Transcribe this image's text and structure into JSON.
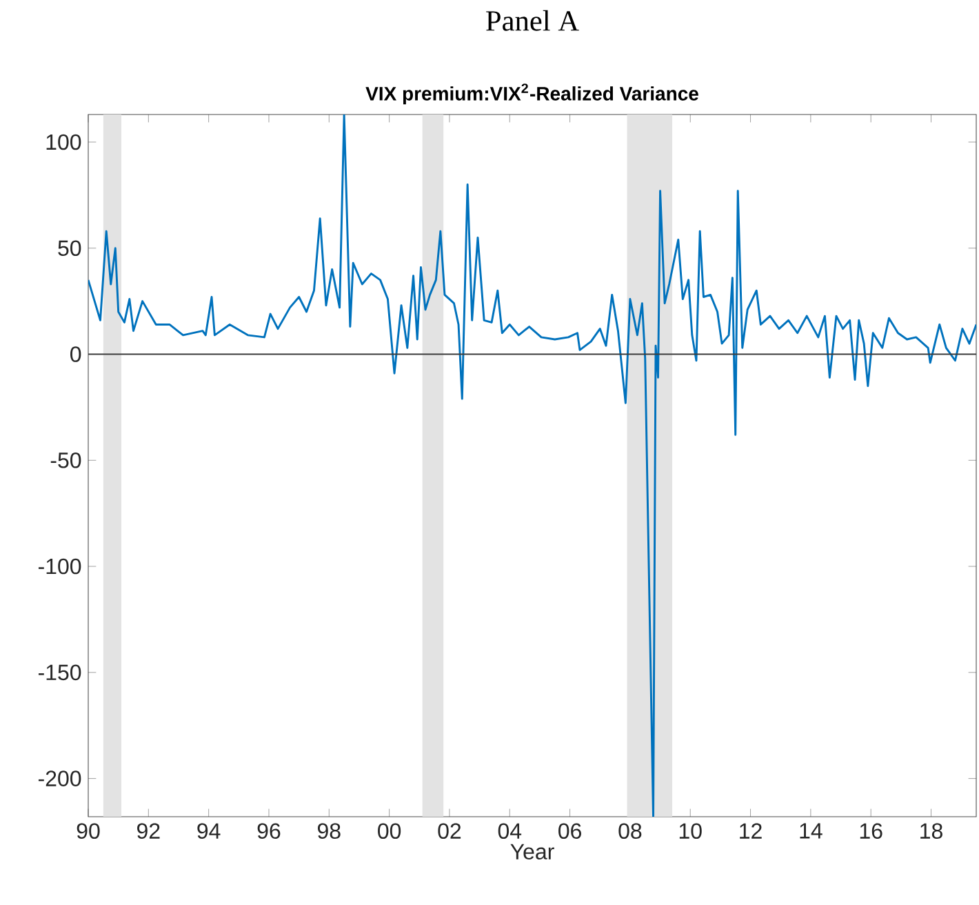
{
  "chart_data": {
    "type": "line",
    "title": "Panel A",
    "subtitle": "VIX premium:VIX$^{2}$-Realized Variance",
    "xlabel": "Year",
    "xlim": [
      1990,
      2019.5
    ],
    "ylim": [
      -218,
      113
    ],
    "xticks": [
      {
        "value": 1990,
        "label": "90"
      },
      {
        "value": 1992,
        "label": "92"
      },
      {
        "value": 1994,
        "label": "94"
      },
      {
        "value": 1996,
        "label": "96"
      },
      {
        "value": 1998,
        "label": "98"
      },
      {
        "value": 2000,
        "label": "00"
      },
      {
        "value": 2002,
        "label": "02"
      },
      {
        "value": 2004,
        "label": "04"
      },
      {
        "value": 2006,
        "label": "06"
      },
      {
        "value": 2008,
        "label": "08"
      },
      {
        "value": 2010,
        "label": "10"
      },
      {
        "value": 2012,
        "label": "12"
      },
      {
        "value": 2014,
        "label": "14"
      },
      {
        "value": 2016,
        "label": "16"
      },
      {
        "value": 2018,
        "label": "18"
      }
    ],
    "yticks": [
      -200,
      -150,
      -100,
      -50,
      0,
      50,
      100
    ],
    "ref_lines": [
      {
        "axis": "y",
        "value": 0,
        "color": "#3c3c3c"
      }
    ],
    "bands": [
      {
        "axis": "x",
        "from": 1990.5,
        "to": 1991.1,
        "color": "#e3e3e3"
      },
      {
        "axis": "x",
        "from": 2001.1,
        "to": 2001.8,
        "color": "#e3e3e3"
      },
      {
        "axis": "x",
        "from": 2007.9,
        "to": 2009.4,
        "color": "#e3e3e3"
      }
    ],
    "line_style": "solid",
    "series": [
      {
        "color": "#0072bd",
        "x": [
          1990.0,
          1990.4,
          1990.6,
          1990.75,
          1990.9,
          1991.0,
          1991.2,
          1991.37,
          1991.5,
          1991.8,
          1992.25,
          1992.7,
          1993.15,
          1993.8,
          1993.9,
          1994.1,
          1994.2,
          1994.7,
          1995.3,
          1995.85,
          1996.05,
          1996.3,
          1996.7,
          1997.0,
          1997.25,
          1997.5,
          1997.7,
          1997.9,
          1998.1,
          1998.35,
          1998.5,
          1998.7,
          1998.8,
          1999.1,
          1999.4,
          1999.7,
          1999.95,
          2000.17,
          2000.4,
          2000.6,
          2000.8,
          2000.93,
          2001.05,
          2001.2,
          2001.35,
          2001.55,
          2001.7,
          2001.84,
          2002.15,
          2002.3,
          2002.42,
          2002.6,
          2002.75,
          2002.94,
          2003.15,
          2003.4,
          2003.6,
          2003.75,
          2004.0,
          2004.3,
          2004.65,
          2005.05,
          2005.5,
          2005.95,
          2006.25,
          2006.33,
          2006.7,
          2007.0,
          2007.2,
          2007.4,
          2007.6,
          2007.85,
          2008.0,
          2008.24,
          2008.4,
          2008.5,
          2008.77,
          2008.85,
          2008.93,
          2009.0,
          2009.15,
          2009.3,
          2009.6,
          2009.75,
          2009.94,
          2010.06,
          2010.2,
          2010.32,
          2010.44,
          2010.67,
          2010.9,
          2011.05,
          2011.28,
          2011.4,
          2011.5,
          2011.58,
          2011.73,
          2011.9,
          2012.2,
          2012.34,
          2012.65,
          2012.95,
          2013.26,
          2013.56,
          2013.87,
          2014.25,
          2014.47,
          2014.63,
          2014.85,
          2015.07,
          2015.3,
          2015.47,
          2015.6,
          2015.77,
          2015.9,
          2016.07,
          2016.38,
          2016.6,
          2016.9,
          2017.2,
          2017.5,
          2017.9,
          2017.97,
          2018.28,
          2018.5,
          2018.8,
          2019.04,
          2019.27,
          2019.5
        ],
        "values": [
          35,
          16,
          58,
          33,
          50,
          20,
          15,
          26,
          11,
          25,
          14,
          14,
          9,
          11,
          9,
          27,
          9,
          14,
          9,
          8,
          19,
          12,
          22,
          27,
          20,
          30,
          64,
          23,
          40,
          22,
          113,
          13,
          43,
          33,
          38,
          35,
          26,
          -9,
          23,
          3,
          37,
          7,
          41,
          21,
          28,
          35,
          58,
          28,
          24,
          14,
          -21,
          80,
          16,
          55,
          16,
          15,
          30,
          10,
          14,
          9,
          13,
          8,
          7,
          8,
          10,
          2,
          6,
          12,
          4,
          28,
          11,
          -23,
          26,
          9,
          24,
          -2,
          -218,
          4,
          -11,
          77,
          24,
          33,
          54,
          26,
          35,
          9,
          -3,
          58,
          27,
          28,
          20,
          5,
          9,
          36,
          -38,
          77,
          3,
          21,
          30,
          14,
          18,
          12,
          16,
          10,
          18,
          8,
          18,
          -11,
          18,
          12,
          16,
          -12,
          16,
          5,
          -15,
          10,
          3,
          17,
          10,
          7,
          8,
          3,
          -4,
          14,
          3,
          -3,
          12,
          5,
          14
        ]
      }
    ]
  }
}
